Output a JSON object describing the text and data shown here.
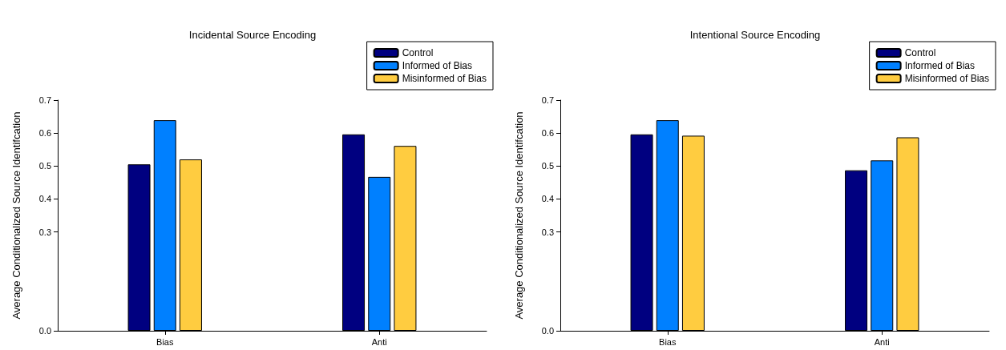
{
  "chart_data": [
    {
      "type": "bar",
      "title": "Incidental Source Encoding",
      "ylabel": "Average Conditionalized Source Identifcation",
      "categories": [
        "Bias",
        "Anti"
      ],
      "series": [
        {
          "name": "Control",
          "color": "#000080",
          "values": [
            0.505,
            0.596
          ]
        },
        {
          "name": "Informed of Bias",
          "color": "#0080ff",
          "values": [
            0.639,
            0.467
          ]
        },
        {
          "name": "Misinformed of Bias",
          "color": "#ffcc40",
          "values": [
            0.52,
            0.561
          ]
        }
      ],
      "ylim": [
        0,
        0.7
      ],
      "yticks": [
        {
          "value": 0,
          "label": "0.0"
        },
        0.3,
        0.4,
        0.5,
        0.6,
        0.7
      ],
      "grid": false,
      "legend": "top right"
    },
    {
      "type": "bar",
      "title": "Intentional Source Encoding",
      "ylabel": "Average Conditionalized Source Identifcation",
      "categories": [
        "Bias",
        "Anti"
      ],
      "series": [
        {
          "name": "Control",
          "color": "#000080",
          "values": [
            0.596,
            0.487
          ]
        },
        {
          "name": "Informed of Bias",
          "color": "#0080ff",
          "values": [
            0.639,
            0.517
          ]
        },
        {
          "name": "Misinformed of Bias",
          "color": "#ffcc40",
          "values": [
            0.592,
            0.587
          ]
        }
      ],
      "ylim": [
        0,
        0.7
      ],
      "yticks": [
        {
          "value": 0,
          "label": "0.0"
        },
        0.3,
        0.4,
        0.5,
        0.6,
        0.7
      ],
      "grid": false,
      "legend": "top right"
    }
  ]
}
